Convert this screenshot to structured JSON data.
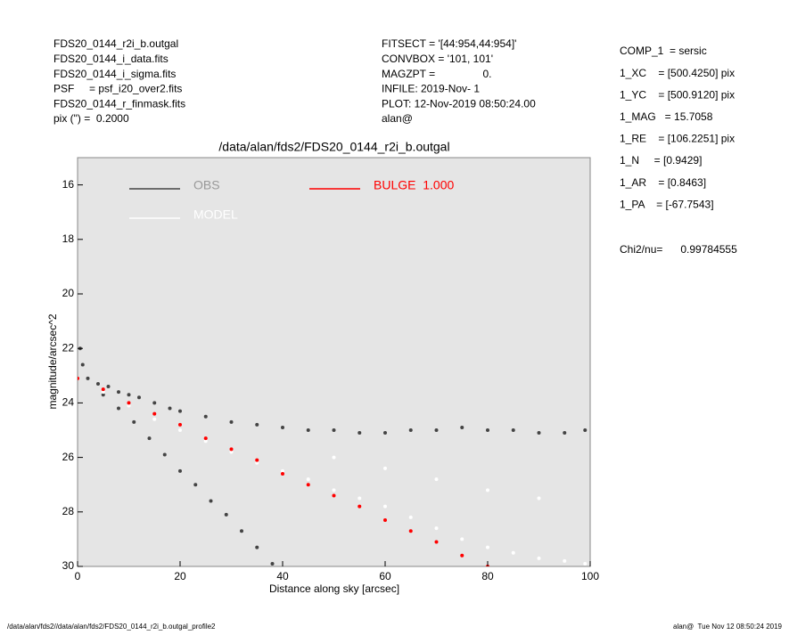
{
  "header": {
    "left": [
      "FDS20_0144_r2i_b.outgal",
      "FDS20_0144_i_data.fits",
      "FDS20_0144_i_sigma.fits",
      "PSF     = psf_i20_over2.fits",
      "FDS20_0144_r_finmask.fits",
      "pix (\") =  0.2000"
    ],
    "middle": [
      "FITSECT = '[44:954,44:954]'",
      "CONVBOX = '101, 101'",
      "MAGZPT =                0.",
      "INFILE: 2019-Nov- 1",
      "PLOT: 12-Nov-2019 08:50:24.00",
      "alan@"
    ],
    "right": [
      "COMP_1  = sersic",
      "1_XC    = [500.4250] pix",
      "1_YC    = [500.9120] pix",
      "1_MAG   = 15.7058",
      "1_RE    = [106.2251] pix",
      "1_N     = [0.9429]",
      "1_AR    = [0.8463]",
      "1_PA    = [-67.7543]"
    ],
    "chi": "Chi2/nu=      0.99784555"
  },
  "footer": {
    "left": "/data/alan/fds2//data/alan/fds2/FDS20_0144_r2i_b.outgal_profile2",
    "right": "alan@  Tue Nov 12 08:50:24 2019"
  },
  "chart_data": {
    "type": "scatter",
    "title": "/data/alan/fds2/FDS20_0144_r2i_b.outgal",
    "x_label": "Distance along sky [arcsec]",
    "y_label": "magnitude/arcsec^2",
    "xlim": [
      0,
      100
    ],
    "xticks": [
      0,
      20,
      40,
      60,
      80,
      100
    ],
    "ylim": [
      30,
      15
    ],
    "yticks": [
      16,
      18,
      20,
      22,
      24,
      26,
      28,
      30
    ],
    "background": "#e5e5e5",
    "legend": "upper left",
    "series": [
      {
        "name": "OBS",
        "color": "#444444",
        "x": [
          0.5,
          1,
          2,
          4,
          6,
          8,
          10,
          12,
          15,
          18,
          20,
          25,
          30,
          35,
          40,
          45,
          50,
          55,
          60,
          65,
          70,
          75,
          80,
          85,
          90,
          95,
          99,
          5,
          8,
          11,
          14,
          17,
          20,
          23,
          26,
          29,
          32,
          35,
          38
        ],
        "values": [
          22.0,
          22.6,
          23.1,
          23.3,
          23.4,
          23.6,
          23.7,
          23.8,
          24.0,
          24.2,
          24.3,
          24.5,
          24.7,
          24.8,
          24.9,
          25.0,
          25.0,
          25.1,
          25.1,
          25.0,
          25.0,
          24.9,
          25.0,
          25.0,
          25.1,
          25.1,
          25.0,
          23.7,
          24.2,
          24.7,
          25.3,
          25.9,
          26.5,
          27.0,
          27.6,
          28.1,
          28.7,
          29.3,
          29.9
        ]
      },
      {
        "name": "MODEL",
        "color": "#ffffff",
        "x": [
          5,
          10,
          15,
          20,
          25,
          30,
          35,
          40,
          45,
          50,
          55,
          60,
          65,
          70,
          75,
          80,
          85,
          90,
          95,
          99,
          50,
          60,
          70,
          80,
          90
        ],
        "values": [
          23.6,
          24.1,
          24.6,
          25.0,
          25.4,
          25.8,
          26.2,
          26.5,
          26.8,
          27.2,
          27.5,
          27.8,
          28.2,
          28.6,
          29.0,
          29.3,
          29.5,
          29.7,
          29.8,
          29.9,
          26.0,
          26.4,
          26.8,
          27.2,
          27.5
        ]
      },
      {
        "name": "BULGE  1.000",
        "color": "#ff0000",
        "x": [
          0,
          5,
          10,
          15,
          20,
          25,
          30,
          35,
          40,
          45,
          50,
          55,
          60,
          65,
          70,
          75,
          80
        ],
        "values": [
          23.1,
          23.5,
          24.0,
          24.4,
          24.8,
          25.3,
          25.7,
          26.1,
          26.6,
          27.0,
          27.4,
          27.8,
          28.3,
          28.7,
          29.1,
          29.6,
          30.0
        ]
      }
    ]
  }
}
